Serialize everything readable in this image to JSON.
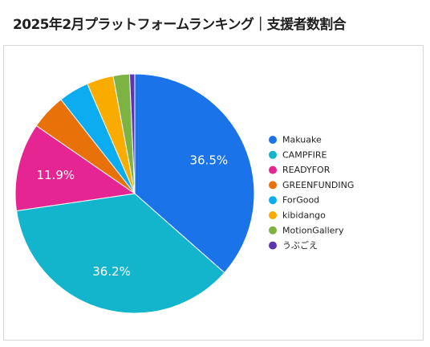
{
  "title": "2025年2月プラットフォームランキング｜支援者数割合",
  "chart_data": {
    "type": "pie",
    "categories": [
      "Makuake",
      "CAMPFIRE",
      "READYFOR",
      "GREENFUNDING",
      "ForGood",
      "kibidango",
      "MotionGallery",
      "うぶごえ"
    ],
    "values": [
      36.5,
      36.2,
      11.9,
      4.8,
      4.1,
      3.6,
      2.2,
      0.7
    ],
    "colors": [
      "#1a73e8",
      "#12b5cb",
      "#e52592",
      "#e8710a",
      "#0bacf0",
      "#f9ab00",
      "#7cb342",
      "#5e35b1"
    ],
    "data_labels": [
      "36.5%",
      "36.2%",
      "11.9%",
      "",
      "",
      "",
      "",
      ""
    ],
    "legend_position": "right"
  }
}
